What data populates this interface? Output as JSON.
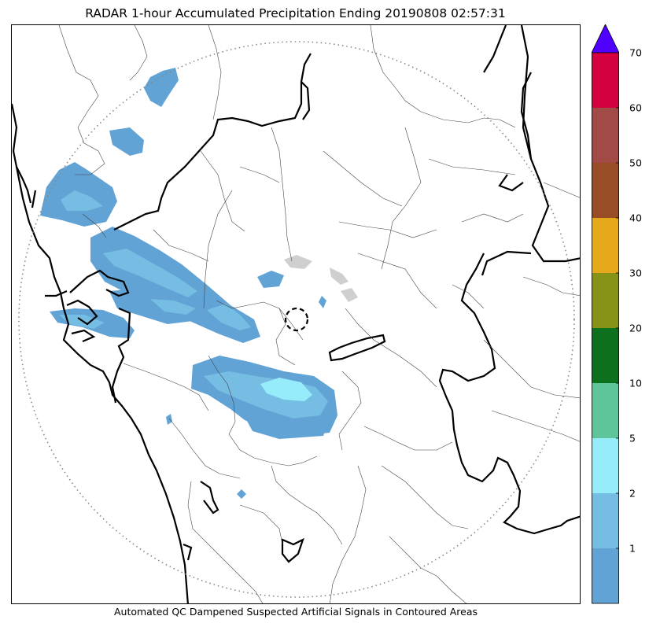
{
  "title": "RADAR 1-hour Accumulated Precipitation Ending 20190808 02:57:31",
  "footer_note": "Automated QC Dampened Suspected Artificial Signals in Contoured Areas",
  "colorbar": {
    "labels": [
      "1",
      "2",
      "5",
      "10",
      "20",
      "30",
      "40",
      "50",
      "60",
      "70"
    ],
    "colors": [
      "#62a3d6",
      "#75bde3",
      "#96ecfb",
      "#5ec49a",
      "#0c701c",
      "#879317",
      "#e6a91c",
      "#994d26",
      "#a24a45",
      "#d4003f"
    ],
    "extend_color": "#5000ff"
  },
  "map": {
    "range_ring_color": "#888888",
    "radar_site_marker": "dashed-circle",
    "border_color": "#000000",
    "district_color": "#444444",
    "precip_colors": {
      "light": "#62a3d6",
      "medium": "#75bde3",
      "heavy": "#96ecfb",
      "qc": "#cccccc"
    }
  }
}
